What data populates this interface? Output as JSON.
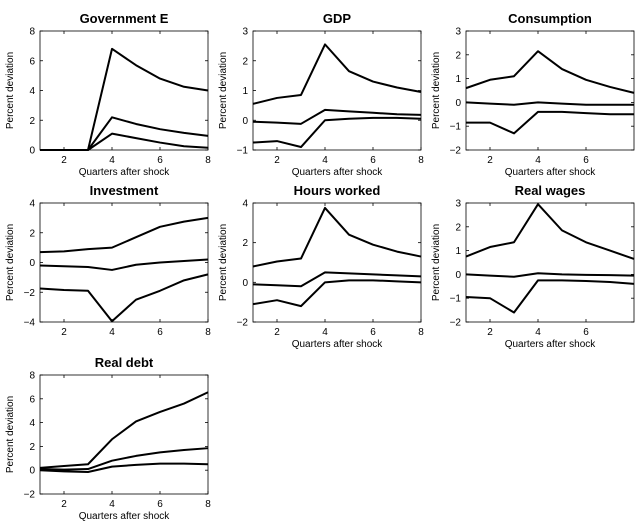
{
  "chart_data": [
    {
      "type": "line",
      "title": "Government E",
      "xlabel": "Quarters after shock",
      "ylabel": "Percent deviation",
      "xlim": [
        1,
        8
      ],
      "ylim": [
        0,
        8
      ],
      "xticks": [
        2,
        4,
        6,
        8
      ],
      "yticks": [
        0,
        2,
        4,
        6,
        8
      ],
      "x": [
        1,
        2,
        3,
        4,
        5,
        6,
        7,
        8
      ],
      "series": [
        {
          "values": [
            0,
            0,
            0,
            6.8,
            5.7,
            4.8,
            4.25,
            4.0
          ]
        },
        {
          "values": [
            0,
            0,
            0,
            2.2,
            1.75,
            1.4,
            1.15,
            0.95
          ]
        },
        {
          "values": [
            0,
            0,
            0,
            1.1,
            0.8,
            0.5,
            0.25,
            0.15
          ]
        }
      ]
    },
    {
      "type": "line",
      "title": "GDP",
      "xlabel": "Quarters after shock",
      "ylabel": "Percent deviation",
      "xlim": [
        1,
        8
      ],
      "ylim": [
        -1,
        3
      ],
      "xticks": [
        2,
        4,
        6,
        8
      ],
      "yticks": [
        -1,
        0,
        1,
        2,
        3
      ],
      "x": [
        1,
        2,
        3,
        4,
        5,
        6,
        7,
        8
      ],
      "series": [
        {
          "values": [
            0.55,
            0.75,
            0.85,
            2.55,
            1.65,
            1.3,
            1.1,
            0.95
          ]
        },
        {
          "values": [
            -0.05,
            -0.08,
            -0.12,
            0.35,
            0.3,
            0.25,
            0.2,
            0.18
          ]
        },
        {
          "values": [
            -0.75,
            -0.7,
            -0.9,
            0.0,
            0.05,
            0.08,
            0.08,
            0.05
          ]
        }
      ]
    },
    {
      "type": "line",
      "title": "Consumption",
      "xlabel": "Quarters after shock",
      "ylabel": "Percent deviation",
      "xlim": [
        1,
        8
      ],
      "ylim": [
        -2,
        3
      ],
      "xticks": [
        2,
        4,
        6,
        8
      ],
      "yticks": [
        -2,
        -1,
        0,
        1,
        2,
        3
      ],
      "x": [
        1,
        2,
        3,
        4,
        5,
        6,
        7,
        8
      ],
      "series": [
        {
          "values": [
            0.6,
            0.95,
            1.1,
            2.15,
            1.4,
            0.95,
            0.65,
            0.4
          ]
        },
        {
          "values": [
            0.0,
            -0.05,
            -0.1,
            0.0,
            -0.05,
            -0.1,
            -0.1,
            -0.1
          ]
        },
        {
          "values": [
            -0.85,
            -0.85,
            -1.3,
            -0.4,
            -0.4,
            -0.45,
            -0.5,
            -0.5
          ]
        }
      ]
    },
    {
      "type": "line",
      "title": "Investment",
      "xlabel": "",
      "ylabel": "Percent deviation",
      "xlim": [
        1,
        8
      ],
      "ylim": [
        -4,
        4
      ],
      "xticks": [
        2,
        4,
        6,
        8
      ],
      "yticks": [
        -4,
        -2,
        0,
        2,
        4
      ],
      "x": [
        1,
        2,
        3,
        4,
        5,
        6,
        7,
        8
      ],
      "series": [
        {
          "values": [
            0.7,
            0.75,
            0.9,
            1.0,
            1.7,
            2.4,
            2.75,
            3.0
          ]
        },
        {
          "values": [
            -0.2,
            -0.25,
            -0.3,
            -0.5,
            -0.15,
            0.0,
            0.1,
            0.2
          ]
        },
        {
          "values": [
            -1.75,
            -1.85,
            -1.9,
            -3.95,
            -2.5,
            -1.9,
            -1.2,
            -0.8
          ]
        }
      ]
    },
    {
      "type": "line",
      "title": "Hours worked",
      "xlabel": "Quarters after shock",
      "ylabel": "Percent deviation",
      "xlim": [
        1,
        8
      ],
      "ylim": [
        -2,
        4
      ],
      "xticks": [
        2,
        4,
        6,
        8
      ],
      "yticks": [
        -2,
        0,
        2,
        4
      ],
      "x": [
        1,
        2,
        3,
        4,
        5,
        6,
        7,
        8
      ],
      "series": [
        {
          "values": [
            0.8,
            1.05,
            1.2,
            3.75,
            2.4,
            1.9,
            1.55,
            1.3
          ]
        },
        {
          "values": [
            -0.1,
            -0.15,
            -0.2,
            0.5,
            0.45,
            0.4,
            0.35,
            0.3
          ]
        },
        {
          "values": [
            -1.1,
            -0.9,
            -1.2,
            0.0,
            0.1,
            0.1,
            0.05,
            0.0
          ]
        }
      ]
    },
    {
      "type": "line",
      "title": "Real wages",
      "xlabel": "Quarters after shock",
      "ylabel": "Percent deviation",
      "xlim": [
        1,
        8
      ],
      "ylim": [
        -2,
        3
      ],
      "xticks": [
        2,
        4,
        6,
        8
      ],
      "yticks": [
        -2,
        -1,
        0,
        1,
        2,
        3
      ],
      "x": [
        1,
        2,
        3,
        4,
        5,
        6,
        7,
        8
      ],
      "series": [
        {
          "values": [
            0.75,
            1.15,
            1.35,
            2.95,
            1.85,
            1.35,
            1.0,
            0.65
          ]
        },
        {
          "values": [
            0.0,
            -0.05,
            -0.1,
            0.05,
            0.0,
            -0.02,
            -0.03,
            -0.05
          ]
        },
        {
          "values": [
            -0.95,
            -1.0,
            -1.6,
            -0.25,
            -0.25,
            -0.28,
            -0.32,
            -0.4
          ]
        }
      ]
    },
    {
      "type": "line",
      "title": "Real debt",
      "xlabel": "Quarters after shock",
      "ylabel": "Percent deviation",
      "xlim": [
        1,
        8
      ],
      "ylim": [
        -2,
        8
      ],
      "xticks": [
        2,
        4,
        6,
        8
      ],
      "yticks": [
        -2,
        0,
        2,
        4,
        6,
        8
      ],
      "x": [
        1,
        2,
        3,
        4,
        5,
        6,
        7,
        8
      ],
      "series": [
        {
          "values": [
            0.2,
            0.35,
            0.5,
            2.6,
            4.1,
            4.9,
            5.6,
            6.55
          ]
        },
        {
          "values": [
            0.1,
            0.05,
            0.1,
            0.8,
            1.2,
            1.5,
            1.7,
            1.85
          ]
        },
        {
          "values": [
            0.0,
            -0.1,
            -0.15,
            0.3,
            0.45,
            0.55,
            0.55,
            0.5
          ]
        }
      ]
    }
  ]
}
